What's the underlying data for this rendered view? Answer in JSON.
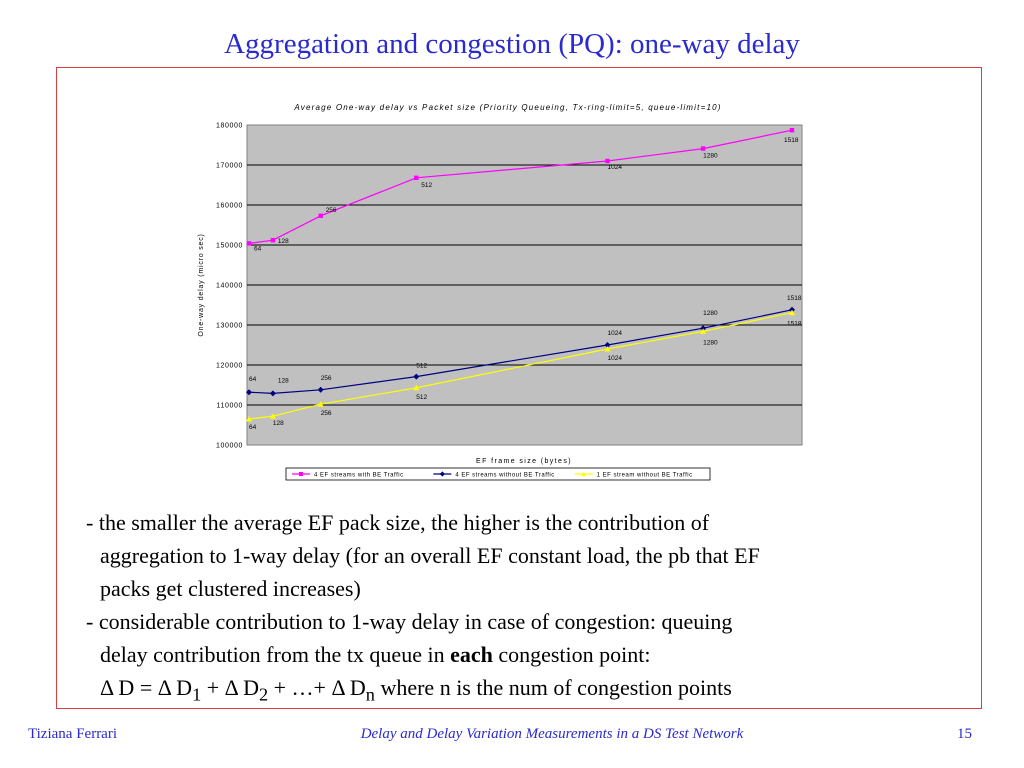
{
  "slide": {
    "title": "Aggregation and congestion (PQ): one-way delay"
  },
  "bullets": {
    "b1_line1": "- the smaller the average EF pack size, the higher is the contribution of",
    "b1_line2": "aggregation to 1-way delay (for an overall EF constant load, the pb that EF",
    "b1_line3": "packs get clustered increases)",
    "b2_line1": "- considerable contribution to 1-way delay in case of congestion: queuing",
    "b2_line2_pre": "delay contribution from the tx queue in ",
    "b2_line2_bold": "each",
    "b2_line2_post": " congestion point:",
    "formula_a": "Δ D = Δ D",
    "formula_sub1": "1",
    "formula_b": " + Δ D",
    "formula_sub2": "2",
    "formula_c": " + …+ Δ D",
    "formula_subn": "n",
    "formula_d": " where n is the num of congestion points"
  },
  "footer": {
    "author": "Tiziana Ferrari",
    "talk_title": "Delay and Delay Variation Measurements in a DS Test Network",
    "page_number": "15"
  },
  "colors": {
    "title_blue": "#2a2ad0",
    "frame_red": "#d24040",
    "plot_bg": "#c0c0c0",
    "series_magenta": "#ff00ff",
    "series_navy": "#000080",
    "series_yellow": "#ffff00"
  },
  "chart_data": {
    "type": "line",
    "title": "Average One-way delay vs Packet size (Priority Queueing, Tx-ring-limit=5, queue-limit=10)",
    "xlabel": "EF frame size (bytes)",
    "ylabel": "One-way delay (micro sec)",
    "ylim": [
      100000,
      180000
    ],
    "yticks": [
      "100000",
      "110000",
      "120000",
      "130000",
      "140000",
      "150000",
      "160000",
      "170000",
      "180000"
    ],
    "grid": true,
    "legend_position": "bottom",
    "x": [
      64,
      128,
      256,
      512,
      1024,
      1280,
      1518
    ],
    "point_labels": [
      "64",
      "128",
      "256",
      "512",
      "1024",
      "1280",
      "1518"
    ],
    "series": [
      {
        "name": "4 EF streams with BE Traffic",
        "color": "#ff00ff",
        "marker": "square",
        "values": [
          150400,
          151200,
          157300,
          166800,
          171000,
          174100,
          178700
        ]
      },
      {
        "name": "4 EF streams without BE Traffic",
        "color": "#000080",
        "marker": "diamond",
        "values": [
          113200,
          112900,
          113800,
          117100,
          125000,
          129200,
          133800
        ]
      },
      {
        "name": "1 EF stream without BE Traffic",
        "color": "#ffff00",
        "marker": "triangle",
        "values": [
          106500,
          107200,
          110200,
          114300,
          124000,
          128400,
          133100
        ]
      }
    ]
  }
}
